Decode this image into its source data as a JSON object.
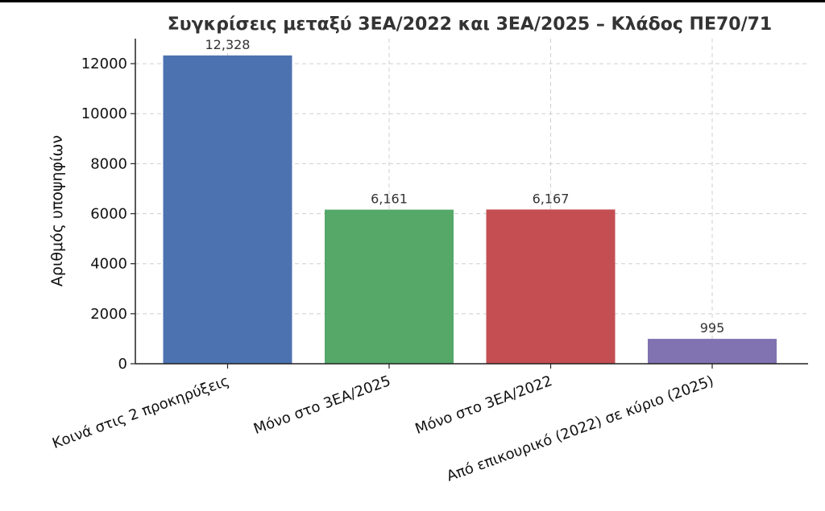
{
  "chart_data": {
    "type": "bar",
    "title": "Συγκρίσεις μεταξύ 3ΕΑ/2022 και 3ΕΑ/2025 – Κλάδος ΠΕ70/71",
    "xlabel": "",
    "ylabel": "Αριθμός υποψηφίων",
    "categories": [
      "Κοινά στις 2 προκηρύξεις",
      "Μόνο στο 3ΕΑ/2025",
      "Μόνο στο 3ΕΑ/2022",
      "Από επικουρικό (2022) σε κύριο (2025)"
    ],
    "values": [
      12328,
      6161,
      6167,
      995
    ],
    "value_labels": [
      "12,328",
      "6,161",
      "6,167",
      "995"
    ],
    "colors": [
      "#4c72b0",
      "#55a868",
      "#c44e52",
      "#8172b2"
    ],
    "ylim": [
      0,
      13000
    ],
    "yticks": [
      0,
      2000,
      4000,
      6000,
      8000,
      10000,
      12000
    ],
    "ytick_labels": [
      "0",
      "2000",
      "4000",
      "6000",
      "8000",
      "10000",
      "12000"
    ],
    "grid": true,
    "legend": "none"
  }
}
